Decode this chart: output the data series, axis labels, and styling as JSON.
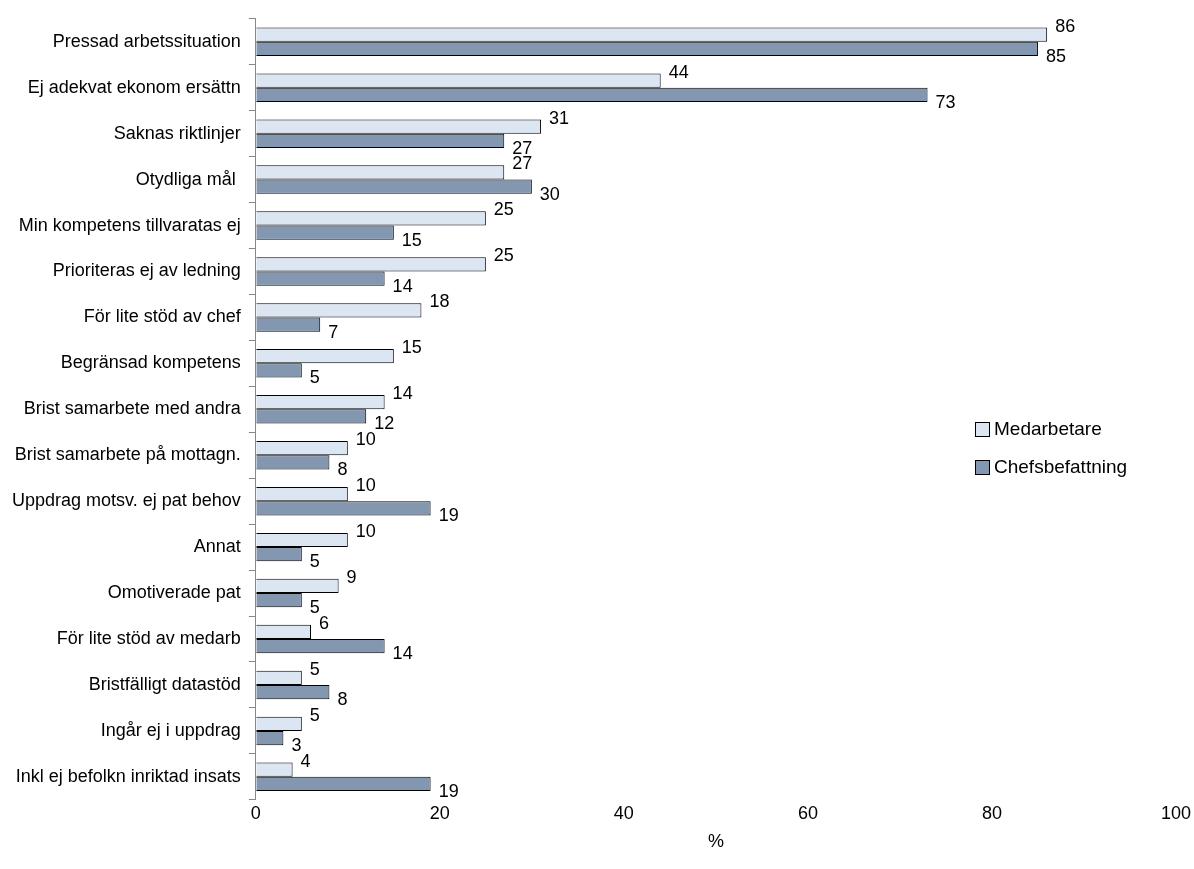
{
  "chart_data": {
    "type": "bar",
    "orientation": "horizontal",
    "xlabel": "%",
    "categories": [
      "Pressad arbetssituation",
      "Ej adekvat ekonom ersättn",
      "Saknas riktlinjer",
      "Otydliga mål ",
      "Min kompetens tillvaratas ej",
      "Prioriteras ej av ledning",
      "För lite stöd av chef",
      "Begränsad kompetens",
      "Brist samarbete med andra",
      "Brist samarbete på mottagn.",
      "Uppdrag motsv. ej pat behov",
      "Annat",
      "Omotiverade pat",
      "För lite stöd av medarb",
      "Bristfälligt datastöd",
      "Ingår ej i uppdrag",
      "Inkl ej befolkn inriktad insats"
    ],
    "series": [
      {
        "name": "Medarbetare",
        "color": "#dce6f2",
        "values": [
          86,
          44,
          31,
          27,
          25,
          25,
          18,
          15,
          14,
          10,
          10,
          10,
          9,
          6,
          5,
          5,
          4
        ]
      },
      {
        "name": "Chefsbefattning",
        "color": "#8497b0",
        "values": [
          85,
          73,
          27,
          30,
          15,
          14,
          7,
          5,
          12,
          8,
          19,
          5,
          5,
          14,
          8,
          3,
          19
        ]
      }
    ],
    "xlim": [
      0,
      100
    ],
    "xticks": [
      0,
      20,
      40,
      60,
      80,
      100
    ],
    "grid": false,
    "legend": "right",
    "data_labels": true
  }
}
